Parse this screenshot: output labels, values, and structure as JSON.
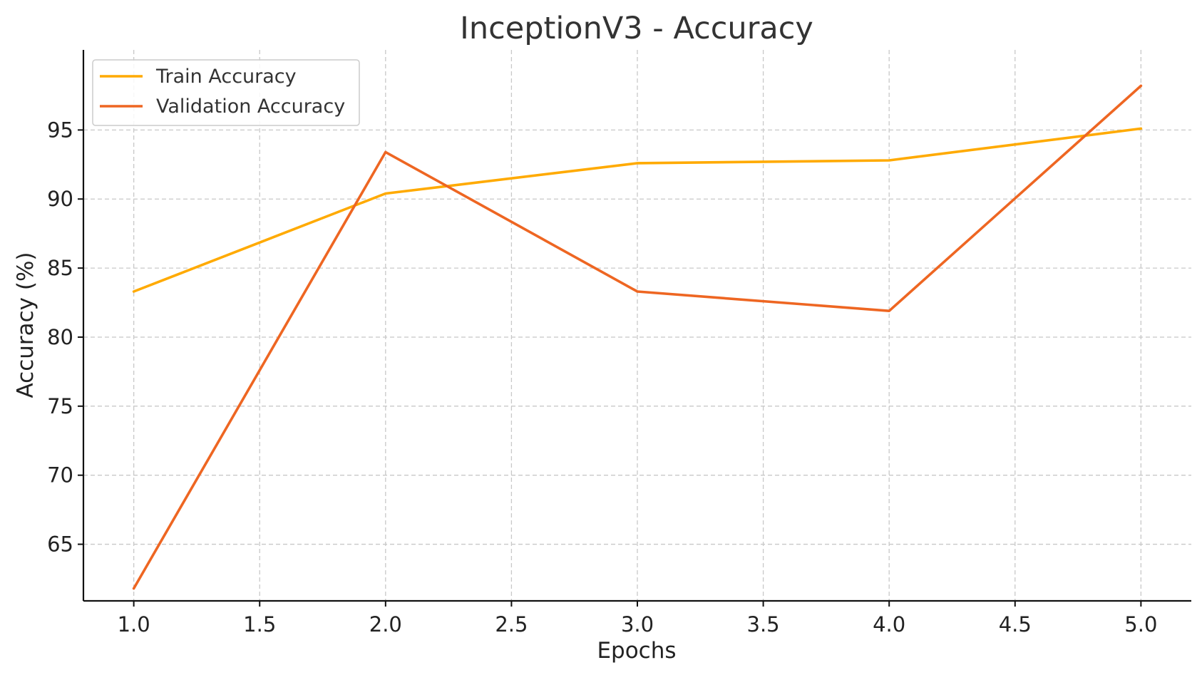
{
  "chart_data": {
    "type": "line",
    "title": "InceptionV3 - Accuracy",
    "xlabel": "Epochs",
    "ylabel": "Accuracy (%)",
    "x": [
      1,
      2,
      3,
      4,
      5
    ],
    "xlim": [
      0.8,
      5.2
    ],
    "ylim": [
      60.9,
      100.8
    ],
    "xticks": [
      "1.0",
      "1.5",
      "2.0",
      "2.5",
      "3.0",
      "3.5",
      "4.0",
      "4.5",
      "5.0"
    ],
    "xtick_values": [
      1.0,
      1.5,
      2.0,
      2.5,
      3.0,
      3.5,
      4.0,
      4.5,
      5.0
    ],
    "yticks": [
      "65",
      "70",
      "75",
      "80",
      "85",
      "90",
      "95"
    ],
    "ytick_values": [
      65,
      70,
      75,
      80,
      85,
      90,
      95
    ],
    "grid": true,
    "legend_position": "top-left",
    "series": [
      {
        "name": "Train Accuracy",
        "color": "#FFAA00",
        "values": [
          83.3,
          90.4,
          92.6,
          92.8,
          95.1
        ]
      },
      {
        "name": "Validation Accuracy",
        "color": "#EE6622",
        "values": [
          61.8,
          93.4,
          83.3,
          81.9,
          98.2
        ]
      }
    ]
  }
}
